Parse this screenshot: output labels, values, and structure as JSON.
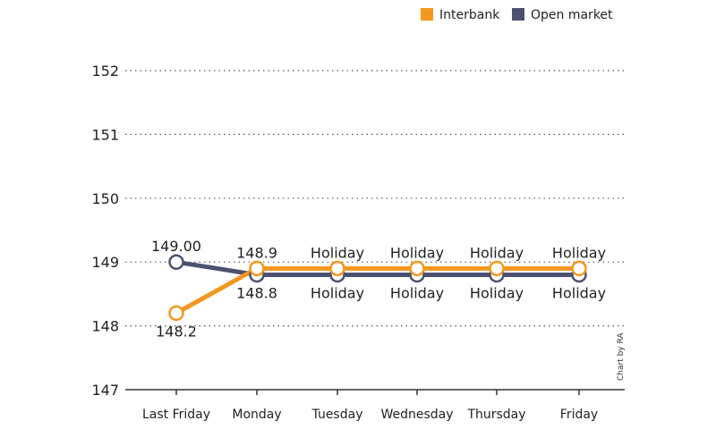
{
  "chart_data": {
    "type": "line",
    "categories": [
      "Last Friday",
      "Monday",
      "Tuesday",
      "Wednesday",
      "Thursday",
      "Friday"
    ],
    "ylim": [
      147,
      152
    ],
    "yticks": [
      147,
      148,
      149,
      150,
      151,
      152
    ],
    "grid": true,
    "legend_position": "top-right",
    "series": [
      {
        "name": "Interbank",
        "color": "#f5971f",
        "values": [
          148.2,
          148.9,
          148.9,
          148.9,
          148.9,
          148.9
        ],
        "labels": [
          "148.2",
          "148.9",
          "Holiday",
          "Holiday",
          "Holiday",
          "Holiday"
        ],
        "label_side": [
          "below",
          "above",
          "above",
          "above",
          "above",
          "above"
        ]
      },
      {
        "name": "Open market",
        "color": "#4b5170",
        "values": [
          149.0,
          148.8,
          148.8,
          148.8,
          148.8,
          148.8
        ],
        "labels": [
          "149.00",
          "148.8",
          "Holiday",
          "Holiday",
          "Holiday",
          "Holiday"
        ],
        "label_side": [
          "above",
          "below",
          "below",
          "below",
          "below",
          "below"
        ]
      }
    ],
    "credit": "Chart by RA"
  }
}
